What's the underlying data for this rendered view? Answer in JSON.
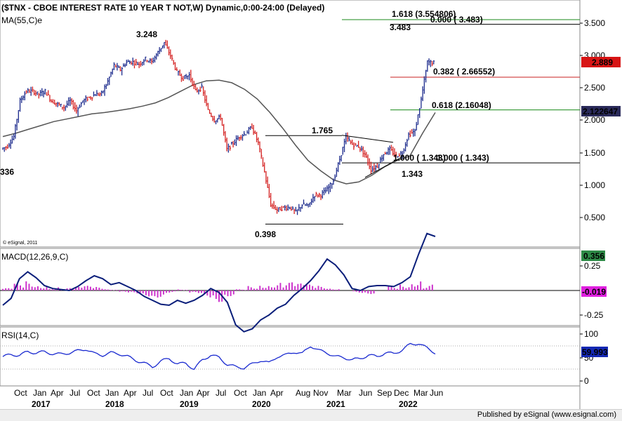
{
  "header": {
    "title": "($TNX - CBOE INTEREST RATE 10 YEAR T NOT,W) Dynamic,0:00-24:00 (Delayed)",
    "ma_label": "MA(55,C)e",
    "watermark": "© eSignal, 2011"
  },
  "footer": {
    "credit": "Published by eSignal (www.esignal.com)"
  },
  "colors": {
    "price_up": "#1b2a8c",
    "price_down": "#d42020",
    "ma": "#555555",
    "fib_green": "#1a8a1a",
    "fib_red": "#c82020",
    "macd_line": "#0a1e7a",
    "macd_hist": "#cc33cc",
    "rsi_line": "#1a2ad0",
    "badge_price": "#d71414",
    "badge_ma": "#2a2a5a",
    "badge_macd": "#2e8b47",
    "badge_hist": "#e020e0",
    "badge_rsi": "#1428b4"
  },
  "chart_data": [
    {
      "type": "candlestick",
      "title": "($TNX - CBOE INTEREST RATE 10 YEAR T NOT,W) Dynamic,0:00-24:00 (Delayed)",
      "series": [
        {
          "name": "$TNX",
          "x": [
            "2016-08",
            "2016-09",
            "2016-10",
            "2016-11",
            "2016-12",
            "2017-01",
            "2017-02",
            "2017-03",
            "2017-04",
            "2017-05",
            "2017-06",
            "2017-07",
            "2017-08",
            "2017-09",
            "2017-10",
            "2017-11",
            "2017-12",
            "2018-01",
            "2018-02",
            "2018-03",
            "2018-04",
            "2018-05",
            "2018-06",
            "2018-07",
            "2018-08",
            "2018-09",
            "2018-10",
            "2018-11",
            "2018-12",
            "2019-01",
            "2019-02",
            "2019-03",
            "2019-04",
            "2019-05",
            "2019-06",
            "2019-07",
            "2019-08",
            "2019-09",
            "2019-10",
            "2019-11",
            "2019-12",
            "2020-01",
            "2020-02",
            "2020-03",
            "2020-04",
            "2020-05",
            "2020-06",
            "2020-07",
            "2020-08",
            "2020-09",
            "2020-10",
            "2020-11",
            "2020-12",
            "2021-01",
            "2021-02",
            "2021-03",
            "2021-04",
            "2021-05",
            "2021-06",
            "2021-07",
            "2021-08",
            "2021-09",
            "2021-10",
            "2021-11",
            "2021-12",
            "2022-01",
            "2022-02",
            "2022-03",
            "2022-04",
            "2022-05"
          ],
          "values": [
            1.56,
            1.6,
            1.75,
            2.3,
            2.45,
            2.45,
            2.4,
            2.45,
            2.3,
            2.25,
            2.2,
            2.3,
            2.15,
            2.3,
            2.35,
            2.4,
            2.41,
            2.6,
            2.85,
            2.78,
            2.9,
            2.9,
            2.87,
            2.95,
            2.9,
            3.05,
            3.2,
            3.0,
            2.75,
            2.65,
            2.7,
            2.45,
            2.5,
            2.15,
            2.0,
            2.05,
            1.55,
            1.65,
            1.75,
            1.8,
            1.9,
            1.65,
            1.2,
            0.7,
            0.62,
            0.65,
            0.66,
            0.58,
            0.7,
            0.68,
            0.85,
            0.85,
            0.93,
            1.07,
            1.4,
            1.74,
            1.63,
            1.6,
            1.48,
            1.24,
            1.3,
            1.48,
            1.55,
            1.45,
            1.5,
            1.78,
            1.83,
            2.32,
            2.9,
            2.89
          ]
        },
        {
          "name": "MA(55,C)e",
          "values": [
            1.75,
            1.8,
            1.86,
            1.92,
            1.98,
            2.02,
            2.06,
            2.1,
            2.12,
            2.15,
            2.18,
            2.22,
            2.27,
            2.35,
            2.45,
            2.55,
            2.61,
            2.62,
            2.58,
            2.48,
            2.33,
            2.12,
            1.88,
            1.62,
            1.38,
            1.22,
            1.08,
            1.02,
            1.05,
            1.15,
            1.28,
            1.38,
            1.45,
            1.8,
            2.12
          ]
        }
      ],
      "levels": [
        {
          "label": "1.618 (3.554806)",
          "value": 3.554806
        },
        {
          "label": "0.000 ( 3.483)",
          "value": 3.483
        },
        {
          "label": "0.382 ( 2.66552)",
          "value": 2.66552
        },
        {
          "label": "0.618 (2.16048)",
          "value": 2.16048
        },
        {
          "label": "1.000 ( 1.343)",
          "value": 1.343
        },
        {
          "label": "1.000 ( 1.343)",
          "value": 1.343
        }
      ],
      "annotations": [
        "3.248",
        "1.765",
        "3.483",
        "0.398",
        "1.343",
        "336"
      ],
      "ylim": [
        0.2,
        3.75
      ],
      "y_ticks": [
        "3.500",
        "3.000",
        "2.500",
        "2.000",
        "1.500",
        "1.000",
        "0.500"
      ],
      "last_price": "2.889",
      "ma_value": "2.122647"
    },
    {
      "type": "line",
      "title": "MACD(12,26,9,C)",
      "series": [
        {
          "name": "MACD",
          "values": [
            -0.15,
            -0.08,
            0.12,
            0.19,
            0.13,
            0.05,
            0.02,
            0.01,
            0.0,
            0.04,
            0.1,
            0.15,
            0.12,
            0.06,
            0.08,
            0.04,
            0.0,
            -0.06,
            -0.1,
            -0.14,
            -0.15,
            -0.1,
            -0.13,
            -0.1,
            -0.05,
            0.02,
            -0.02,
            -0.12,
            -0.35,
            -0.42,
            -0.39,
            -0.3,
            -0.25,
            -0.18,
            -0.14,
            -0.05,
            0.02,
            0.1,
            0.2,
            0.32,
            0.26,
            0.16,
            0.02,
            0.0,
            0.04,
            0.05,
            0.05,
            0.04,
            0.08,
            0.14,
            0.37,
            0.58,
            0.55
          ]
        },
        {
          "name": "Histogram",
          "values": [
            0.02,
            0.06,
            0.08,
            0.05,
            0.03,
            0.02,
            0.03,
            0.04,
            0.03,
            0.01,
            -0.02,
            -0.03,
            -0.05,
            -0.06,
            -0.02,
            0.01,
            -0.03,
            -0.06,
            -0.1,
            -0.05,
            0.01,
            0.04,
            0.06,
            0.07,
            0.07,
            0.06,
            0.05,
            0.04,
            0.02,
            0.0,
            -0.02,
            -0.03,
            0.0,
            0.04,
            0.06,
            0.1,
            0.05,
            0.0
          ]
        }
      ],
      "y_ticks": [
        "0.25",
        "-0.25"
      ],
      "ylim": [
        -0.55,
        0.72
      ],
      "macd_value": "0.356",
      "hist_value": "-0.019"
    },
    {
      "type": "line",
      "title": "RSI(14,C)",
      "series": [
        {
          "name": "RSI",
          "values": [
            52,
            56,
            55,
            62,
            60,
            62,
            58,
            57,
            60,
            64,
            68,
            58,
            55,
            60,
            58,
            52,
            44,
            38,
            30,
            42,
            48,
            36,
            38,
            25,
            45,
            55,
            50,
            35,
            30,
            28,
            36,
            44,
            38,
            52,
            55,
            62,
            58,
            75,
            65,
            60,
            52,
            50,
            45,
            48,
            55,
            52,
            60,
            58,
            66,
            78,
            80,
            70,
            60
          ]
        }
      ],
      "y_ticks": [
        "100",
        "50",
        "0"
      ],
      "ylim": [
        0,
        100
      ],
      "rsi_value": "59.993"
    }
  ],
  "x_axis": {
    "months": [
      "Oct",
      "Jan",
      "Apr",
      "Jul",
      "Oct",
      "Jan",
      "Apr",
      "Jul",
      "Oct",
      "Jan",
      "Apr",
      "Jul",
      "Oct",
      "Jan",
      "Apr",
      "Aug",
      "Nov",
      "Mar",
      "Jun",
      "Sep",
      "Dec",
      "Mar",
      "Jun"
    ],
    "years": [
      "2017",
      "2018",
      "2019",
      "2020",
      "2021",
      "2022"
    ]
  }
}
